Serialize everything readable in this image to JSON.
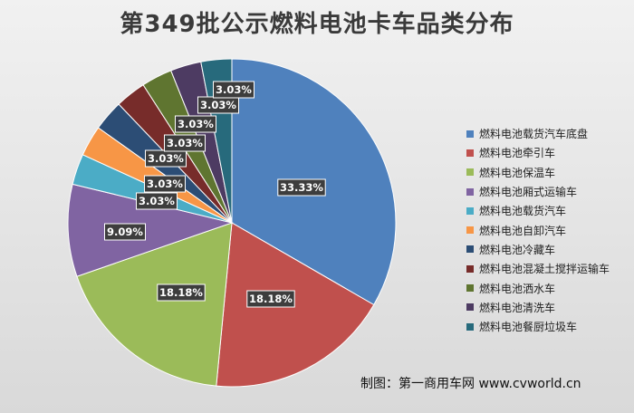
{
  "chart_data": {
    "type": "pie",
    "title": "第349批公示燃料电池卡车品类分布",
    "categories": [
      "燃料电池载货汽车底盘",
      "燃料电池牵引车",
      "燃料电池保温车",
      "燃料电池厢式运输车",
      "燃料电池载货汽车",
      "燃料电池自卸汽车",
      "燃料电池冷藏车",
      "燃料电池混凝土搅拌运输车",
      "燃料电池洒水车",
      "燃料电池清洗车",
      "燃料电池餐厨垃圾车"
    ],
    "values": [
      33.33,
      18.18,
      18.18,
      9.09,
      3.03,
      3.03,
      3.03,
      3.03,
      3.03,
      3.03,
      3.03
    ],
    "labels": [
      "33.33%",
      "18.18%",
      "18.18%",
      "9.09%",
      "3.03%",
      "3.03%",
      "3.03%",
      "3.03%",
      "3.03%",
      "3.03%",
      "3.03%"
    ],
    "colors": [
      "#4f81bd",
      "#c0504d",
      "#9bbb59",
      "#8064a2",
      "#4bacc6",
      "#f79646",
      "#2c4d75",
      "#772c2a",
      "#5f7530",
      "#4d3b62",
      "#276a7c"
    ],
    "legend_position": "right"
  },
  "source_credit": "制图：第一商用车网 www.cvworld.cn"
}
